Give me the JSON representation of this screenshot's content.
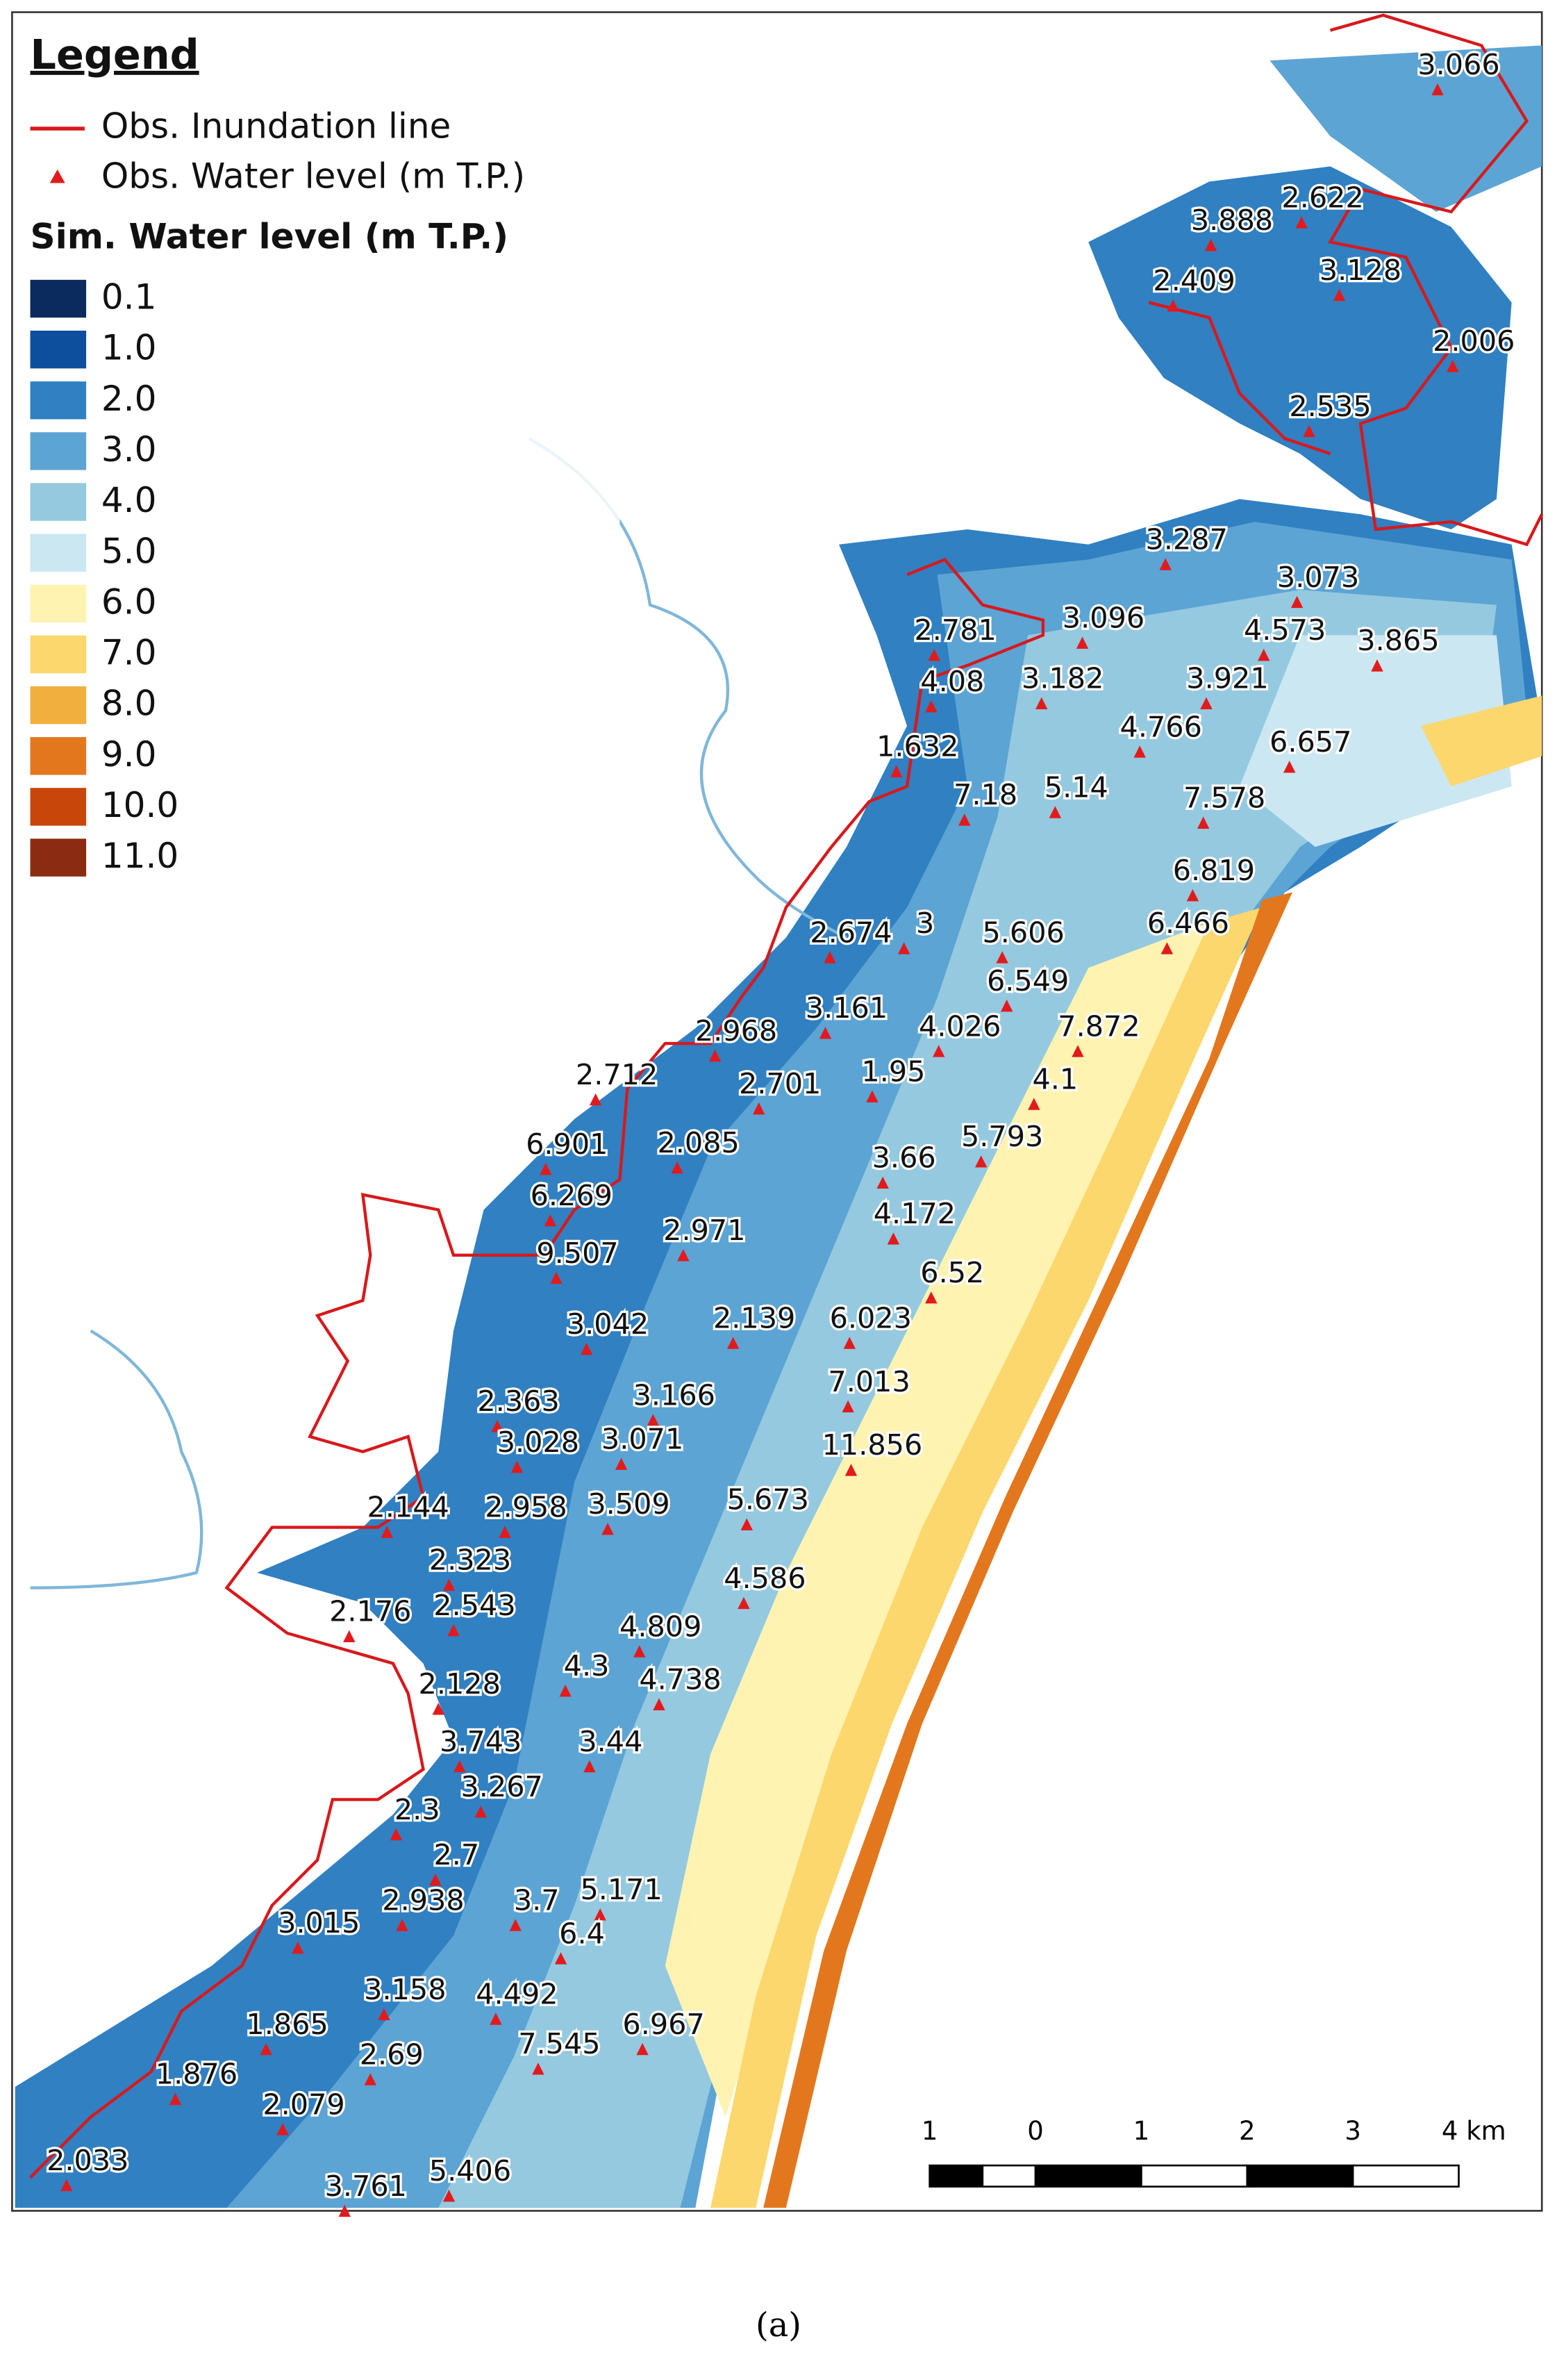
{
  "legend": {
    "title": "Legend",
    "items": [
      {
        "label": "Obs. Inundation line"
      },
      {
        "label": "Obs. Water level (m T.P.)"
      }
    ],
    "scale_title": "Sim. Water level (m T.P.)",
    "scale": [
      {
        "label": "0.1",
        "color": "#0b2b5e"
      },
      {
        "label": "1.0",
        "color": "#0e4f9d"
      },
      {
        "label": "2.0",
        "color": "#3080c2"
      },
      {
        "label": "3.0",
        "color": "#5ca4d4"
      },
      {
        "label": "4.0",
        "color": "#95c9e0"
      },
      {
        "label": "5.0",
        "color": "#cbe7f1"
      },
      {
        "label": "6.0",
        "color": "#fff3b2"
      },
      {
        "label": "7.0",
        "color": "#fcd76d"
      },
      {
        "label": "8.0",
        "color": "#f1af3e"
      },
      {
        "label": "9.0",
        "color": "#e3771d"
      },
      {
        "label": "10.0",
        "color": "#c8460a"
      },
      {
        "label": "11.0",
        "color": "#8b2b11"
      }
    ]
  },
  "observations": [
    "3.066",
    "3.888",
    "2.622",
    "2.409",
    "3.128",
    "2.006",
    "2.535",
    "3.287",
    "3.073",
    "2.781",
    "3.096",
    "4.573",
    "3.865",
    "4.08",
    "3.182",
    "3.921",
    "4.766",
    "6.657",
    "1.632",
    "7.18",
    "5.14",
    "7.578",
    "6.819",
    "2.674",
    "3",
    "5.606",
    "6.466",
    "6.549",
    "3.161",
    "4.026",
    "7.872",
    "2.968",
    "2.712",
    "2.701",
    "1.95",
    "4.1",
    "5.793",
    "6.901",
    "2.085",
    "3.66",
    "6.269",
    "4.172",
    "2.971",
    "9.507",
    "6.52",
    "3.042",
    "2.139",
    "6.023",
    "2.363",
    "3.166",
    "7.013",
    "3.028",
    "3.071",
    "11.856",
    "2.144",
    "2.958",
    "3.509",
    "5.673",
    "2.323",
    "4.586",
    "2.176",
    "2.543",
    "4.809",
    "4.3",
    "4.738",
    "2.128",
    "3.743",
    "3.44",
    "3.267",
    "2.3",
    "2.7",
    "5.171",
    "2.938",
    "3.7",
    "3.015",
    "6.4",
    "3.158",
    "4.492",
    "6.967",
    "1.865",
    "2.69",
    "7.545",
    "1.876",
    "2.079",
    "2.033",
    "3.761",
    "5.406"
  ],
  "scale_bar": [
    "1",
    "0",
    "1",
    "2",
    "3",
    "4 km"
  ],
  "caption": "(a)"
}
